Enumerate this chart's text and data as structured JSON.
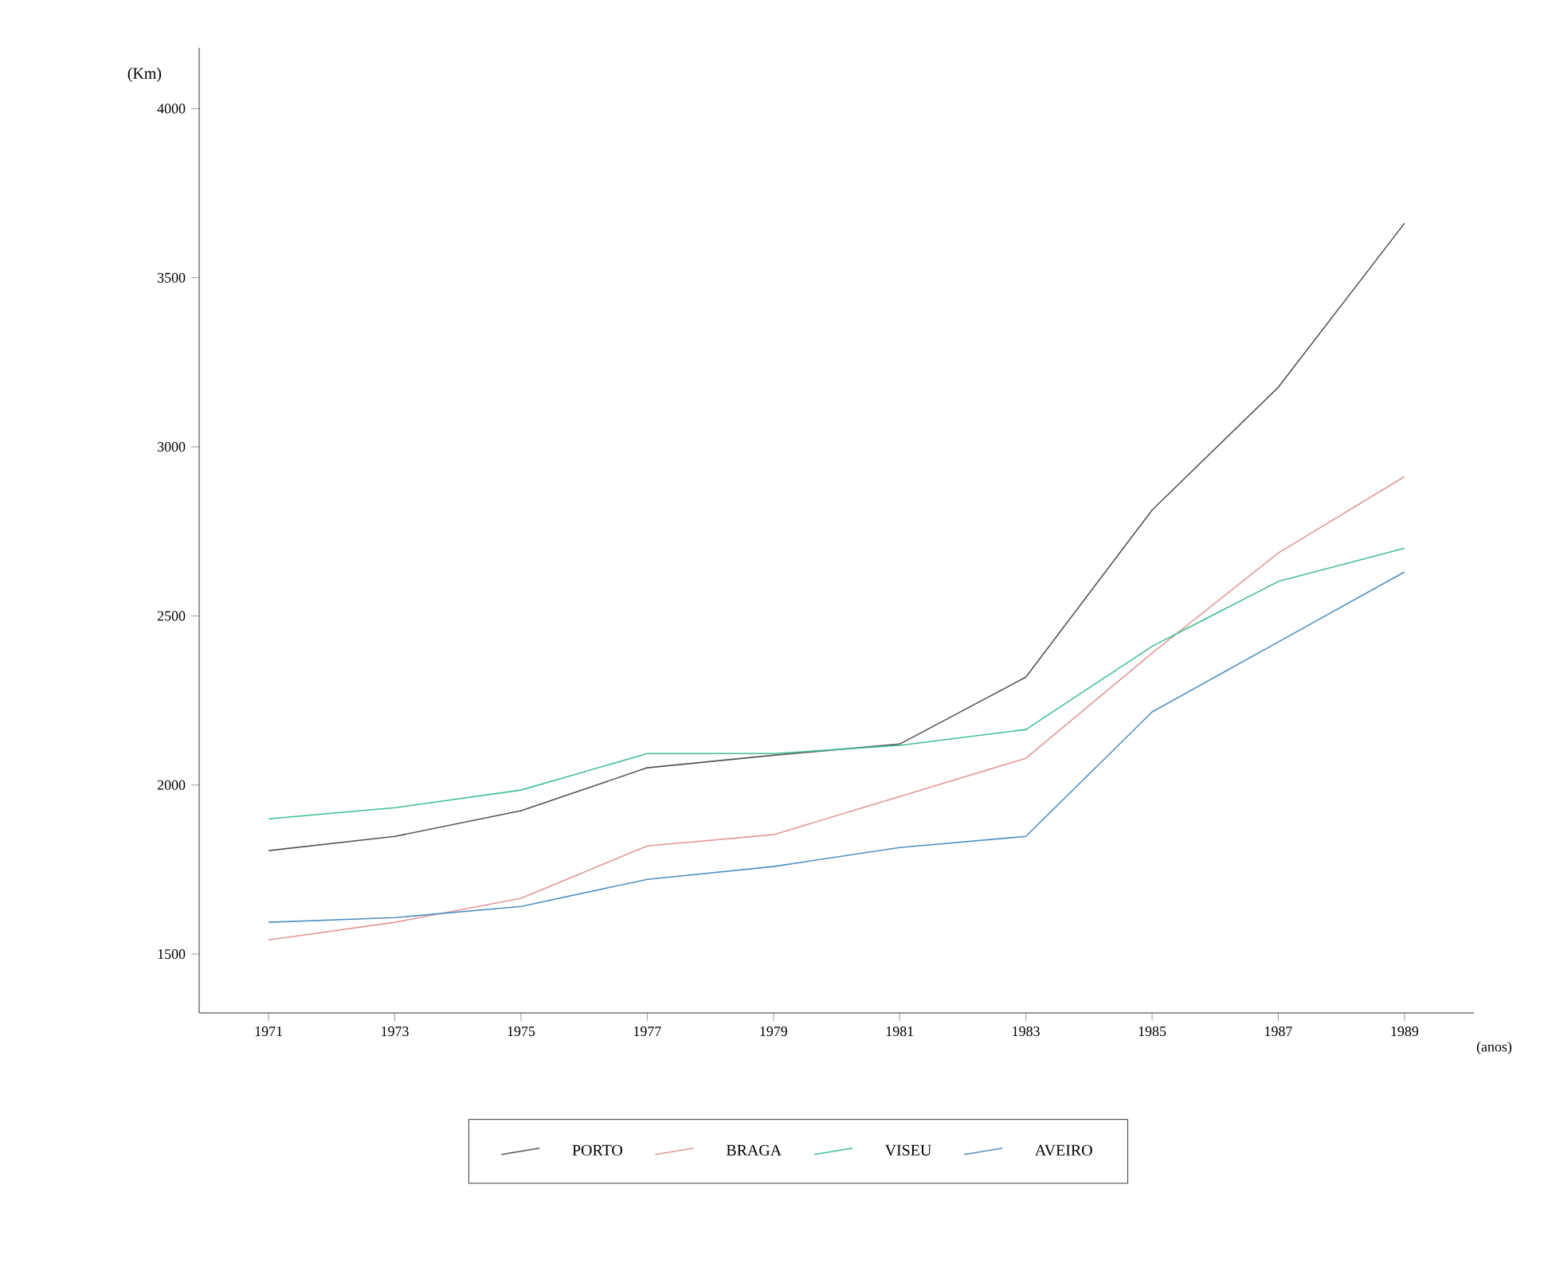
{
  "chart_data": {
    "type": "line",
    "xlabel": "(anos)",
    "ylabel": "(Km)",
    "x": [
      1971,
      1973,
      1975,
      1977,
      1979,
      1981,
      1983,
      1985,
      1987,
      1989
    ],
    "series": [
      {
        "name": "PORTO",
        "color": "#555555",
        "values": [
          1806,
          1848,
          1924,
          2051,
          2088,
          2121,
          2319,
          2813,
          3176,
          3661
        ]
      },
      {
        "name": "BRAGA",
        "color": "#e09898",
        "values": [
          1542,
          1594,
          1665,
          1820,
          1853,
          1966,
          2079,
          2390,
          2686,
          2912
        ]
      },
      {
        "name": "VISEU",
        "color": "#40c090",
        "values": [
          1900,
          1933,
          1985,
          2093,
          2093,
          2117,
          2164,
          2410,
          2602,
          2700
        ]
      },
      {
        "name": "AVEIRO",
        "color": "#5090c0",
        "values": [
          1594,
          1608,
          1641,
          1721,
          1759,
          1815,
          1848,
          2216,
          2423,
          2630
        ]
      }
    ],
    "xlim": [
      1969.9,
      1990.1
    ],
    "ylim": [
      1326,
      4180
    ],
    "xticks": [
      1971,
      1973,
      1975,
      1977,
      1979,
      1981,
      1983,
      1985,
      1987,
      1989
    ],
    "yticks": [
      1500,
      2000,
      2500,
      3000,
      3500,
      4000
    ],
    "grid": false,
    "legend": "bottom",
    "line_style": "solid"
  }
}
